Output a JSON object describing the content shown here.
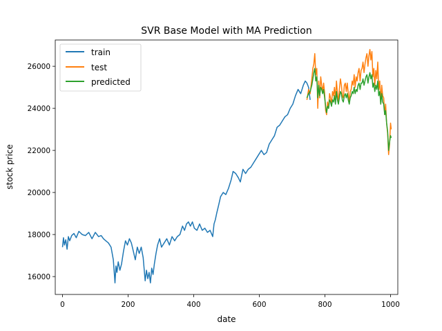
{
  "chart_data": {
    "type": "line",
    "title": "SVR Base Model with MA Prediction",
    "xlabel": "date",
    "ylabel": "stock price",
    "xlim": [
      -22,
      1022
    ],
    "ylim": [
      15150,
      27250
    ],
    "xticks": [
      0,
      200,
      400,
      600,
      800,
      1000
    ],
    "yticks": [
      16000,
      18000,
      20000,
      22000,
      24000,
      26000
    ],
    "xtick_labels": [
      "0",
      "200",
      "400",
      "600",
      "800",
      "1000"
    ],
    "ytick_labels": [
      "16000",
      "18000",
      "20000",
      "22000",
      "24000",
      "26000"
    ],
    "grid": false,
    "legend_position": "upper-left",
    "series": [
      {
        "name": "train",
        "color": "#1f77b4",
        "x": [
          0,
          3,
          6,
          10,
          14,
          18,
          22,
          28,
          35,
          42,
          50,
          60,
          70,
          80,
          90,
          100,
          110,
          118,
          125,
          132,
          140,
          148,
          155,
          160,
          163,
          166,
          170,
          175,
          180,
          186,
          192,
          198,
          204,
          210,
          216,
          222,
          228,
          234,
          240,
          246,
          252,
          256,
          260,
          264,
          268,
          272,
          276,
          280,
          285,
          290,
          296,
          302,
          310,
          318,
          326,
          334,
          342,
          350,
          358,
          366,
          372,
          378,
          384,
          390,
          396,
          402,
          410,
          418,
          426,
          434,
          442,
          450,
          458,
          462,
          466,
          470,
          476,
          482,
          490,
          498,
          506,
          514,
          520,
          528,
          536,
          542,
          550,
          558,
          566,
          574,
          582,
          590,
          598,
          606,
          614,
          622,
          630,
          638,
          646,
          654,
          662,
          670,
          678,
          686,
          694,
          702,
          710,
          718,
          726,
          734,
          740,
          745,
          750,
          755
        ],
        "y": [
          17400,
          17850,
          17500,
          17750,
          17300,
          17900,
          17700,
          17950,
          18050,
          17850,
          18150,
          18000,
          17950,
          18100,
          17800,
          18100,
          17900,
          17950,
          17800,
          17700,
          17600,
          17400,
          16800,
          15700,
          16500,
          16200,
          16700,
          16300,
          16600,
          17200,
          17700,
          17500,
          17800,
          17600,
          17200,
          16800,
          17400,
          17100,
          17400,
          16900,
          15800,
          16300,
          15900,
          16200,
          15700,
          16400,
          16100,
          16600,
          17100,
          17500,
          17800,
          17400,
          17600,
          17800,
          17500,
          17900,
          17700,
          17900,
          18000,
          18400,
          18200,
          18500,
          18600,
          18400,
          18600,
          18300,
          18200,
          18500,
          18200,
          18300,
          18100,
          18200,
          17900,
          18500,
          18700,
          19000,
          19400,
          19800,
          20000,
          19900,
          20200,
          20600,
          21000,
          20900,
          20700,
          20500,
          21100,
          20900,
          21100,
          21200,
          21400,
          21600,
          21800,
          22000,
          21800,
          21900,
          22300,
          22500,
          22700,
          23100,
          23200,
          23400,
          23600,
          23700,
          24000,
          24200,
          24600,
          24900,
          24700,
          25100,
          25300,
          25200,
          25000,
          24400
        ]
      },
      {
        "name": "test",
        "color": "#ff7f0e",
        "x": [
          745,
          750,
          755,
          760,
          763,
          766,
          769,
          772,
          775,
          778,
          781,
          784,
          787,
          790,
          793,
          796,
          799,
          802,
          805,
          808,
          811,
          814,
          817,
          820,
          823,
          826,
          829,
          832,
          835,
          838,
          841,
          844,
          847,
          850,
          853,
          856,
          859,
          862,
          865,
          868,
          871,
          874,
          877,
          880,
          883,
          886,
          889,
          892,
          895,
          898,
          901,
          904,
          907,
          910,
          913,
          916,
          919,
          922,
          925,
          928,
          931,
          934,
          937,
          940,
          943,
          946,
          949,
          952,
          955,
          958,
          961,
          964,
          967,
          970,
          973,
          976,
          979,
          982,
          985,
          988,
          991,
          994,
          997,
          1000,
          1002
        ],
        "y": [
          24400,
          24900,
          24700,
          25400,
          25900,
          26100,
          26600,
          25600,
          25900,
          24000,
          25300,
          24500,
          25500,
          25100,
          24800,
          25200,
          24700,
          23900,
          23700,
          24300,
          24000,
          24700,
          24500,
          24200,
          24800,
          24600,
          25000,
          24400,
          25300,
          24700,
          24300,
          24900,
          25400,
          25100,
          24600,
          24500,
          25100,
          25200,
          24800,
          25200,
          24700,
          24300,
          24800,
          24900,
          25300,
          25100,
          25600,
          25000,
          25500,
          25300,
          25700,
          25900,
          25300,
          25800,
          25900,
          26200,
          25700,
          26100,
          26400,
          26600,
          26000,
          26500,
          26800,
          26300,
          26700,
          25500,
          25900,
          25100,
          25800,
          25400,
          26200,
          24900,
          25300,
          24200,
          25100,
          24600,
          24500,
          23700,
          24200,
          23300,
          22800,
          21800,
          22300,
          23300,
          23000
        ]
      },
      {
        "name": "predicted",
        "color": "#2ca02c",
        "x": [
          745,
          750,
          755,
          760,
          763,
          766,
          769,
          772,
          775,
          778,
          781,
          784,
          787,
          790,
          793,
          796,
          799,
          802,
          805,
          808,
          811,
          814,
          817,
          820,
          823,
          826,
          829,
          832,
          835,
          838,
          841,
          844,
          847,
          850,
          853,
          856,
          859,
          862,
          865,
          868,
          871,
          874,
          877,
          880,
          883,
          886,
          889,
          892,
          895,
          898,
          901,
          904,
          907,
          910,
          913,
          916,
          919,
          922,
          925,
          928,
          931,
          934,
          937,
          940,
          943,
          946,
          949,
          952,
          955,
          958,
          961,
          964,
          967,
          970,
          973,
          976,
          979,
          982,
          985,
          988,
          991,
          994,
          997,
          1000,
          1002
        ],
        "y": [
          24500,
          24700,
          24800,
          25100,
          25400,
          25700,
          25900,
          25300,
          25500,
          24500,
          25100,
          24600,
          25000,
          24900,
          24700,
          24900,
          24500,
          24100,
          23800,
          24100,
          24000,
          24400,
          24300,
          24100,
          24400,
          24300,
          24600,
          24200,
          24800,
          24400,
          24200,
          24500,
          24800,
          24700,
          24400,
          24300,
          24600,
          24700,
          24500,
          24700,
          24400,
          24200,
          24500,
          24600,
          24800,
          24700,
          25000,
          24700,
          24900,
          24800,
          25100,
          25200,
          24900,
          25200,
          25200,
          25400,
          25100,
          25300,
          25500,
          25600,
          25200,
          25500,
          25700,
          25400,
          25600,
          25000,
          25200,
          24800,
          25100,
          24900,
          25300,
          24600,
          24800,
          24200,
          24700,
          24300,
          24200,
          23700,
          23900,
          23300,
          22900,
          22000,
          22400,
          22700,
          22600
        ]
      }
    ]
  }
}
